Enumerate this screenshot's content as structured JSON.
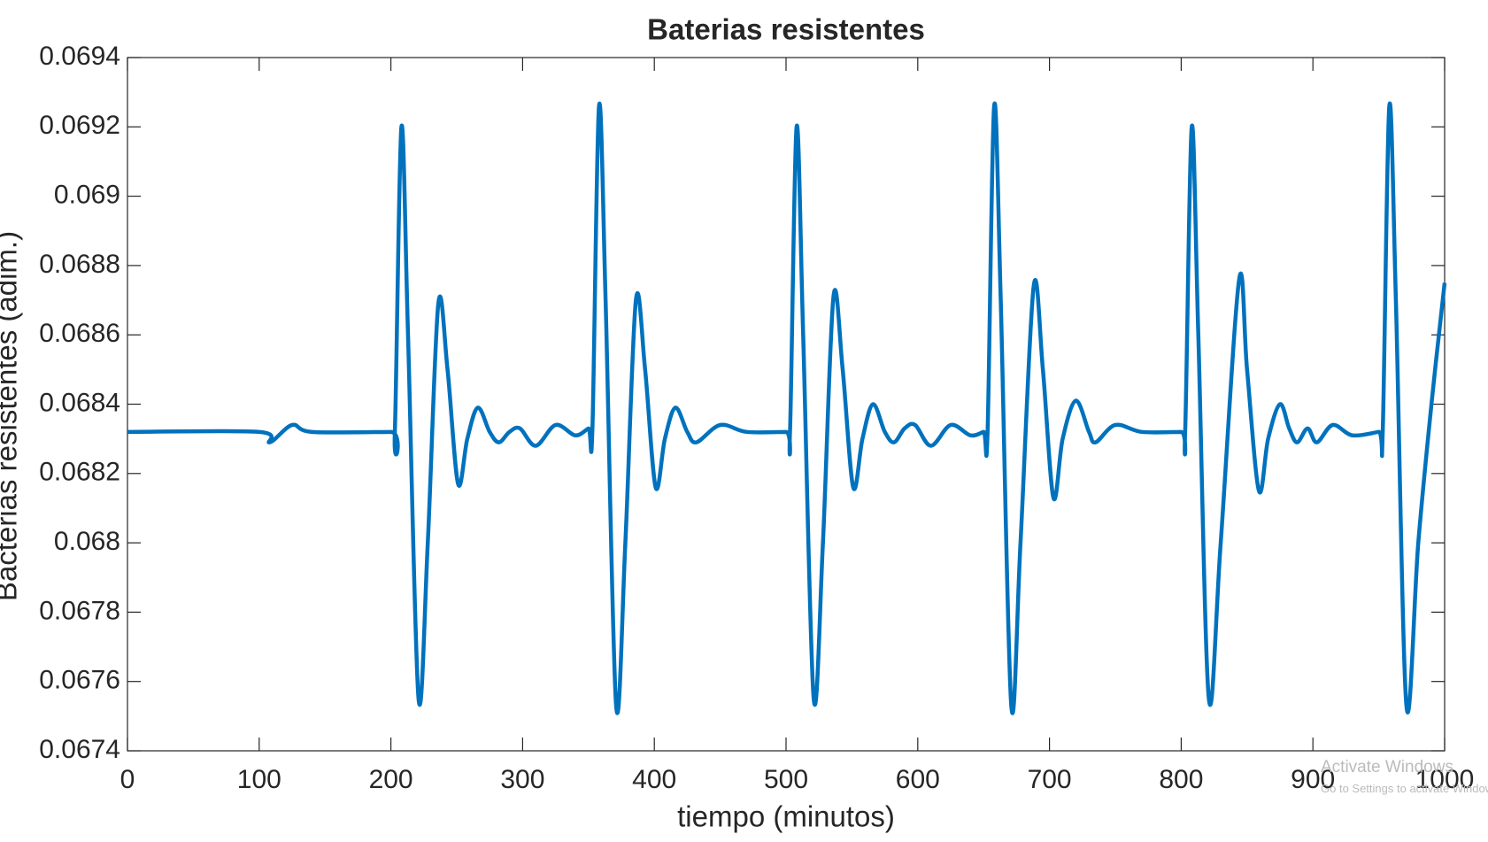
{
  "chart_data": {
    "type": "line",
    "title": "Baterias resistentes",
    "xlabel": "tiempo (minutos)",
    "ylabel": "Bacterias resistentes (adim.)",
    "x": [
      0,
      100,
      108,
      125,
      140,
      200,
      203,
      208,
      213,
      221,
      228,
      236,
      243,
      251,
      258,
      266,
      275,
      282,
      290,
      298,
      310,
      325,
      340,
      350,
      353,
      358,
      363,
      371,
      378,
      386,
      393,
      401,
      408,
      416,
      425,
      432,
      450,
      470,
      500,
      503,
      508,
      513,
      521,
      528,
      536,
      543,
      551,
      558,
      566,
      575,
      582,
      590,
      598,
      610,
      625,
      640,
      650,
      653,
      658,
      663,
      671,
      678,
      688,
      695,
      703,
      710,
      720,
      730,
      735,
      750,
      770,
      800,
      803,
      808,
      813,
      821,
      830,
      844,
      850,
      859,
      866,
      875,
      882,
      888,
      896,
      903,
      915,
      930,
      950,
      953,
      958,
      963,
      971,
      980,
      990,
      1000
    ],
    "series": [
      {
        "name": "Bacterias resistentes",
        "color": "#0072BD",
        "values": [
          0.06832,
          0.06832,
          0.06829,
          0.06834,
          0.06832,
          0.06832,
          0.06832,
          0.0692,
          0.0686,
          0.06755,
          0.068,
          0.06869,
          0.0685,
          0.06817,
          0.0683,
          0.06839,
          0.06832,
          0.06829,
          0.06832,
          0.06833,
          0.06828,
          0.06834,
          0.06831,
          0.06833,
          0.06833,
          0.06926,
          0.0687,
          0.06753,
          0.068,
          0.0687,
          0.0685,
          0.06816,
          0.0683,
          0.06839,
          0.06832,
          0.06829,
          0.06834,
          0.06832,
          0.06832,
          0.06832,
          0.0692,
          0.0686,
          0.06755,
          0.068,
          0.06871,
          0.0685,
          0.06816,
          0.0683,
          0.0684,
          0.06832,
          0.06829,
          0.06833,
          0.06834,
          0.06828,
          0.06834,
          0.06831,
          0.06832,
          0.06832,
          0.06926,
          0.0687,
          0.06753,
          0.068,
          0.06874,
          0.0685,
          0.06813,
          0.0683,
          0.06841,
          0.06832,
          0.06829,
          0.06834,
          0.06832,
          0.06832,
          0.06832,
          0.0692,
          0.0686,
          0.06755,
          0.068,
          0.06876,
          0.0685,
          0.06815,
          0.0683,
          0.0684,
          0.06833,
          0.06829,
          0.06833,
          0.06829,
          0.06834,
          0.06831,
          0.06832,
          0.06832,
          0.06926,
          0.0687,
          0.06753,
          0.068,
          0.0684,
          0.06875
        ]
      }
    ],
    "xlim": [
      0,
      1000
    ],
    "xticks": [
      0,
      100,
      200,
      300,
      400,
      500,
      600,
      700,
      800,
      900,
      1000
    ],
    "ylim": [
      0.0674,
      0.0694
    ],
    "yticks": [
      0.0674,
      0.0676,
      0.0678,
      0.068,
      0.0682,
      0.0684,
      0.0686,
      0.0688,
      0.069,
      0.0692,
      0.0694
    ],
    "grid": false
  },
  "watermark": [
    "Activate Windows",
    "Go to Settings to activate Windows."
  ]
}
